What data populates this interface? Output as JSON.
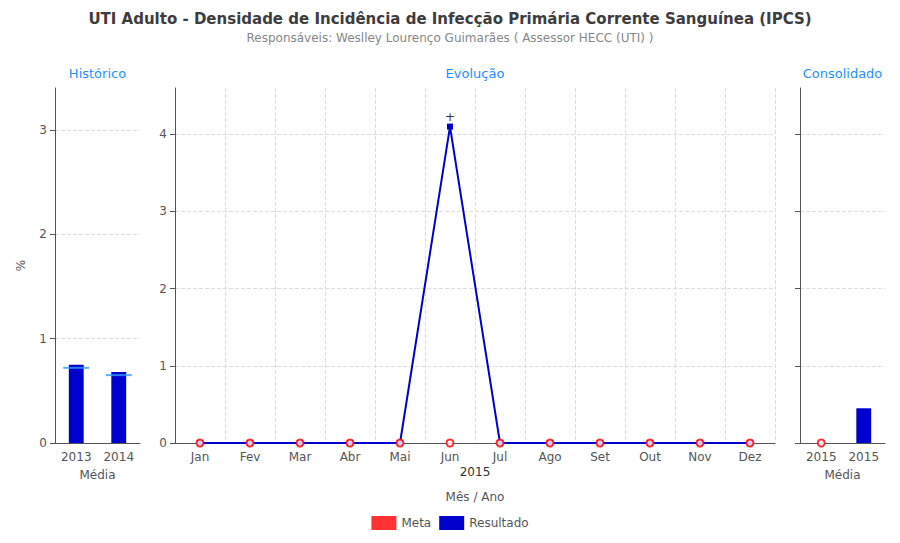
{
  "title": "UTI Adulto - Densidade de Incidência de Infecção Primária Corrente Sanguínea (IPCS)",
  "subtitle": "Responsáveis: Weslley Lourenço Guimarães ( Assessor HECC (UTI) )",
  "legend": "bottom",
  "chart_data": [
    {
      "type": "bar",
      "title": "Histórico",
      "categories": [
        "2013",
        "2014"
      ],
      "xlabel": "Média",
      "ylabel": "%",
      "ylim": [
        0,
        3.4
      ],
      "yticks": [
        0,
        1,
        2,
        3
      ],
      "grid": true,
      "series": [
        {
          "name": "Meta",
          "type": "scatter",
          "marker": "dash",
          "color": "#3399FF",
          "values": [
            0.72,
            0.65
          ]
        },
        {
          "name": "Resultado",
          "type": "bar",
          "color": "#0000CC",
          "values": [
            0.75,
            0.68
          ]
        }
      ]
    },
    {
      "type": "line",
      "title": "Evolução",
      "categories": [
        "Jan",
        "Fev",
        "Mar",
        "Abr",
        "Mai",
        "Jun",
        "Jul",
        "Ago",
        "Set",
        "Out",
        "Nov",
        "Dez"
      ],
      "xlabel": "Mês / Ano",
      "ylim": [
        0,
        4.6
      ],
      "yticks": [
        0,
        1,
        2,
        3,
        4
      ],
      "grid": true,
      "series": [
        {
          "name": "Meta",
          "type": "scatter",
          "marker": "open_circle",
          "color": "#FF0000",
          "values": [
            0.0,
            0.0,
            0.0,
            0.0,
            0.0,
            0.0,
            0.0,
            0.0,
            0.0,
            0.0,
            0.0,
            0.0
          ]
        },
        {
          "name": "Resultado",
          "type": "line",
          "marker": "square",
          "color": "#0000CC",
          "values": [
            0.0,
            0.0,
            0.0,
            0.0,
            0.0,
            4.1,
            0.0,
            0.0,
            0.0,
            0.0,
            0.0,
            0.0
          ]
        }
      ],
      "annotations": [
        {
          "text": "2015"
        },
        {
          "text": "+",
          "x": "Jun",
          "y": 4.1
        }
      ]
    },
    {
      "type": "bar",
      "title": "Consolidado",
      "categories": [
        "2015",
        "2015"
      ],
      "xlabel": "Média",
      "ylim": [
        0,
        4.6
      ],
      "yticks": [
        0,
        1,
        2,
        3,
        4
      ],
      "grid": true,
      "tick_labels": "x",
      "series": [
        {
          "name": "Meta",
          "type": "scatter",
          "marker": "open_circle",
          "color": "#FF0000",
          "values": [
            0.0,
            null
          ]
        },
        {
          "name": "Resultado",
          "type": "bar",
          "color": "#0000CC",
          "values": [
            null,
            0.45
          ]
        }
      ]
    }
  ]
}
